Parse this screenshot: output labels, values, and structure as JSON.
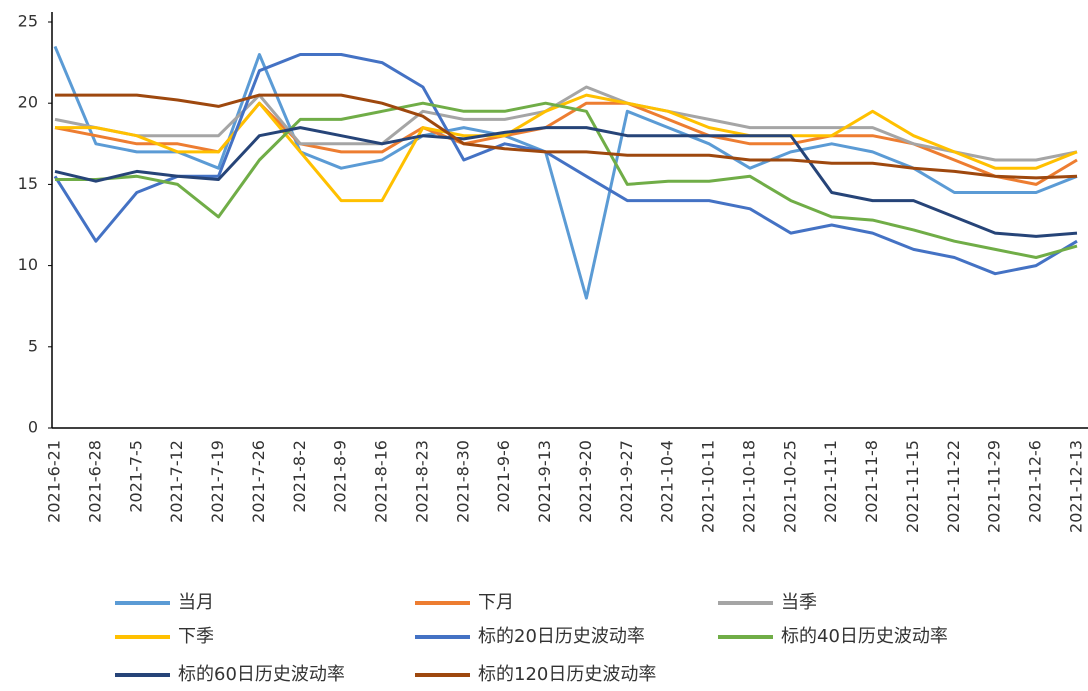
{
  "chart_data": {
    "type": "line",
    "categories": [
      "2021-6-21",
      "2021-6-28",
      "2021-7-5",
      "2021-7-12",
      "2021-7-19",
      "2021-7-26",
      "2021-8-2",
      "2021-8-9",
      "2021-8-16",
      "2021-8-23",
      "2021-8-30",
      "2021-9-6",
      "2021-9-13",
      "2021-9-20",
      "2021-9-27",
      "2021-10-4",
      "2021-10-11",
      "2021-10-18",
      "2021-10-25",
      "2021-11-1",
      "2021-11-8",
      "2021-11-15",
      "2021-11-22",
      "2021-11-29",
      "2021-12-6",
      "2021-12-13"
    ],
    "ylim": [
      0,
      25
    ],
    "yticks": [
      0,
      5,
      10,
      15,
      20,
      25
    ],
    "grid": false,
    "series": [
      {
        "name": "当月",
        "color": "#5B9BD5",
        "values": [
          23.5,
          17.5,
          17,
          17,
          16,
          23,
          17,
          16,
          16.5,
          18,
          18.5,
          18,
          17,
          8,
          19.5,
          18.5,
          17.5,
          16,
          17,
          17.5,
          17,
          16,
          14.5,
          14.5,
          14.5,
          15.5
        ]
      },
      {
        "name": "下月",
        "color": "#ED7D31",
        "values": [
          18.5,
          18,
          17.5,
          17.5,
          17,
          20,
          17.5,
          17,
          17,
          18.5,
          17.5,
          18,
          18.5,
          20,
          20,
          19,
          18,
          17.5,
          17.5,
          18,
          18,
          17.5,
          16.5,
          15.5,
          15,
          16.5
        ]
      },
      {
        "name": "当季",
        "color": "#A5A5A5",
        "values": [
          19,
          18.5,
          18,
          18,
          18,
          20.5,
          17.5,
          17.5,
          17.5,
          19.5,
          19,
          19,
          19.5,
          21,
          20,
          19.5,
          19,
          18.5,
          18.5,
          18.5,
          18.5,
          17.5,
          17,
          16.5,
          16.5,
          17
        ]
      },
      {
        "name": "下季",
        "color": "#FFC000",
        "values": [
          18.5,
          18.5,
          18,
          17,
          17,
          20,
          17,
          14,
          14,
          18.5,
          18,
          18,
          19.5,
          20.5,
          20,
          19.5,
          18.5,
          18,
          18,
          18,
          19.5,
          18,
          17,
          16,
          16,
          17
        ]
      },
      {
        "name": "标的20日历史波动率",
        "color": "#4472C4",
        "values": [
          15.5,
          11.5,
          14.5,
          15.5,
          15.5,
          22,
          23,
          23,
          22.5,
          21,
          16.5,
          17.5,
          17,
          15.5,
          14,
          14,
          14,
          13.5,
          12,
          12.5,
          12,
          11,
          10.5,
          9.5,
          10,
          11.5
        ]
      },
      {
        "name": "标的40日历史波动率",
        "color": "#70AD47",
        "values": [
          15.3,
          15.3,
          15.5,
          15,
          13,
          16.5,
          19,
          19,
          19.5,
          20,
          19.5,
          19.5,
          20,
          19.5,
          15,
          15.2,
          15.2,
          15.5,
          14,
          13,
          12.8,
          12.2,
          11.5,
          11,
          10.5,
          11.2
        ]
      },
      {
        "name": "标的60日历史波动率",
        "color": "#264478",
        "values": [
          15.8,
          15.2,
          15.8,
          15.5,
          15.3,
          18,
          18.5,
          18,
          17.5,
          18,
          17.8,
          18.2,
          18.5,
          18.5,
          18,
          18,
          18,
          18,
          18,
          14.5,
          14,
          14,
          13,
          12,
          11.8,
          12
        ]
      },
      {
        "name": "标的120日历史波动率",
        "color": "#9E480E",
        "values": [
          20.5,
          20.5,
          20.5,
          20.2,
          19.8,
          20.5,
          20.5,
          20.5,
          20,
          19.2,
          17.5,
          17.2,
          17,
          17,
          16.8,
          16.8,
          16.8,
          16.5,
          16.5,
          16.3,
          16.3,
          16,
          15.8,
          15.5,
          15.4,
          15.5
        ]
      }
    ]
  }
}
